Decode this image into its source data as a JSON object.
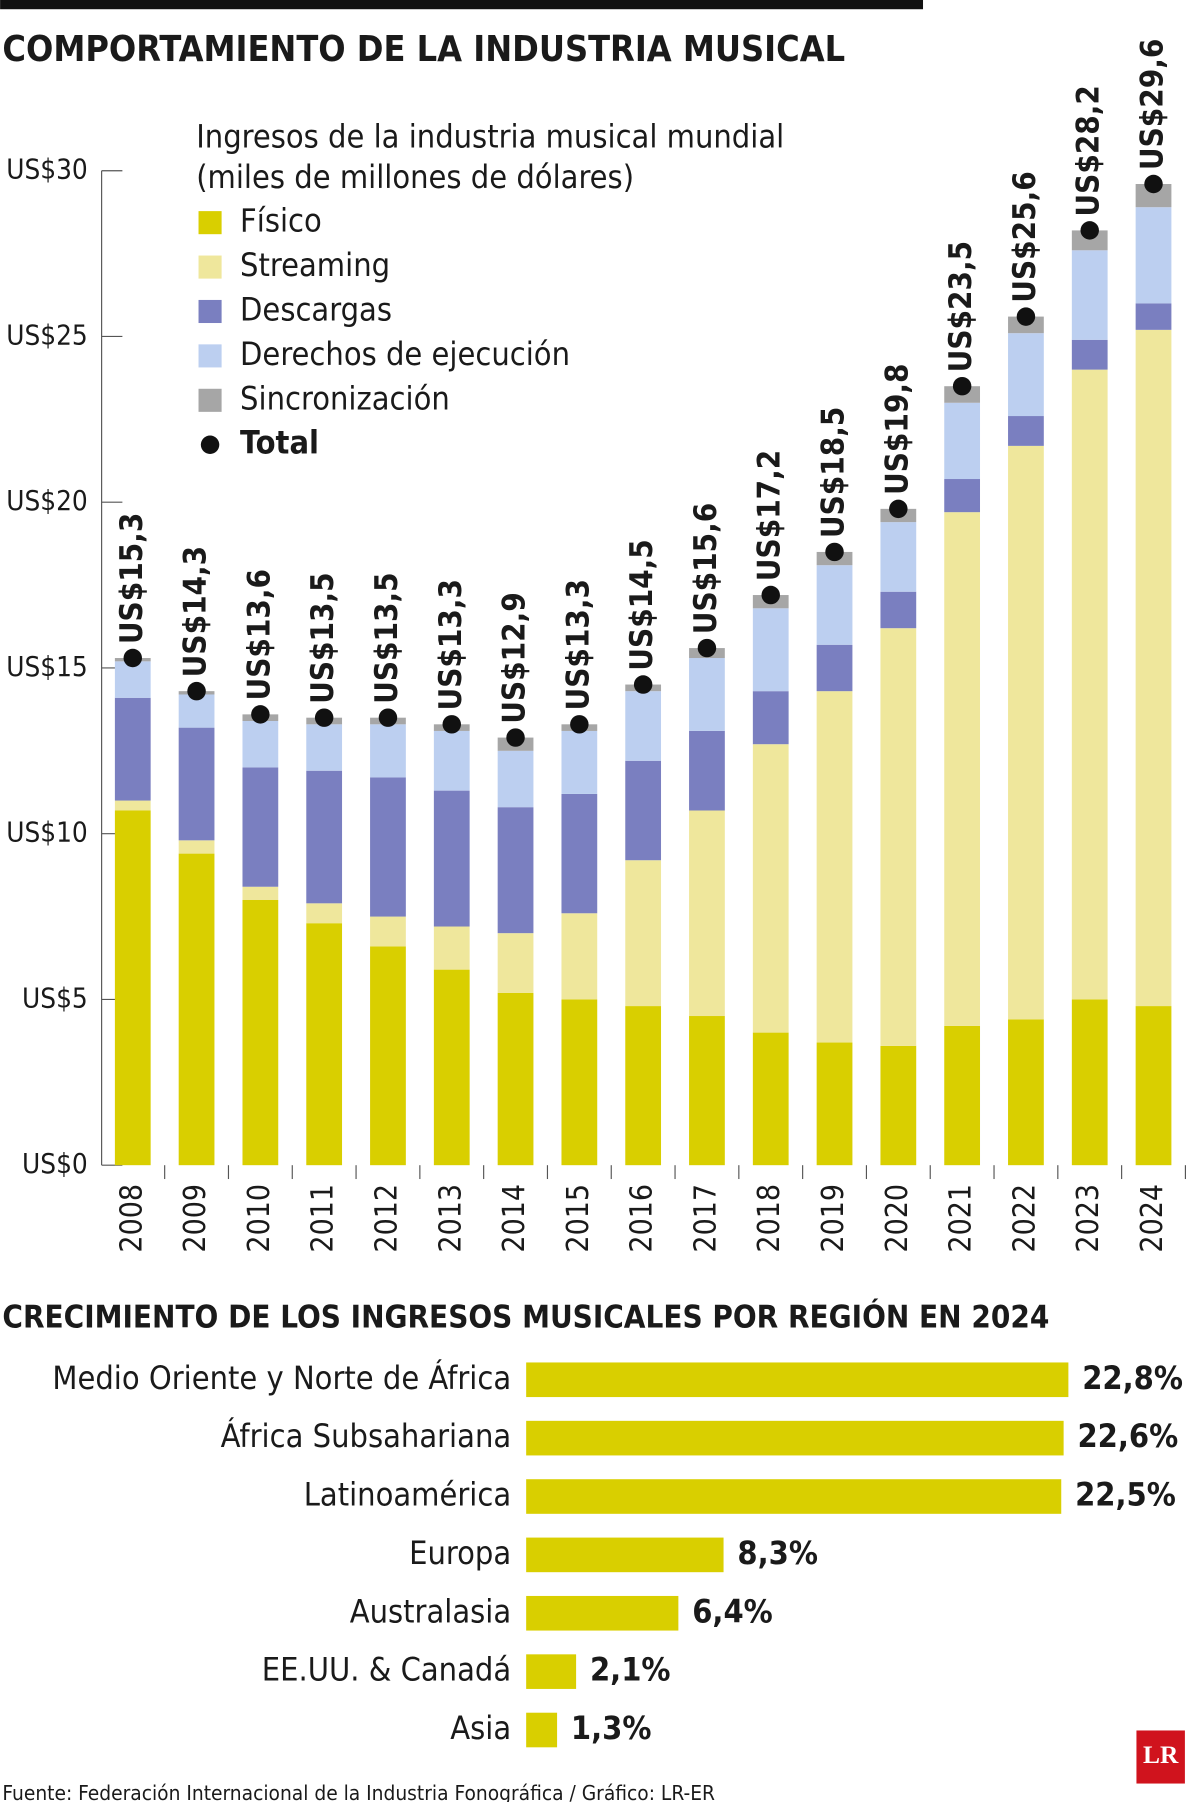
{
  "chart_data": [
    {
      "type": "bar",
      "stacked": true,
      "title": "COMPORTAMIENTO DE LA INDUSTRIA MUSICAL",
      "subtitle": [
        "Ingresos de la industria musical mundial",
        "(miles de millones de dólares)"
      ],
      "categories": [
        "2008",
        "2009",
        "2010",
        "2011",
        "2012",
        "2013",
        "2014",
        "2015",
        "2016",
        "2017",
        "2018",
        "2019",
        "2020",
        "2021",
        "2022",
        "2023",
        "2024"
      ],
      "series": [
        {
          "name": "Físico",
          "color": "#d9cf00",
          "values": [
            10.7,
            9.4,
            8.0,
            7.3,
            6.6,
            5.9,
            5.2,
            5.0,
            4.8,
            4.5,
            4.0,
            3.7,
            3.6,
            4.2,
            4.4,
            5.0,
            4.8
          ]
        },
        {
          "name": "Streaming",
          "color": "#efe79c",
          "values": [
            0.3,
            0.4,
            0.4,
            0.6,
            0.9,
            1.3,
            1.8,
            2.6,
            4.4,
            6.2,
            8.7,
            10.6,
            12.6,
            15.5,
            17.3,
            19.0,
            20.4
          ]
        },
        {
          "name": "Descargas",
          "color": "#7a7fc0",
          "values": [
            3.1,
            3.4,
            3.6,
            4.0,
            4.2,
            4.1,
            3.8,
            3.6,
            3.0,
            2.4,
            1.6,
            1.4,
            1.1,
            1.0,
            0.9,
            0.9,
            0.8
          ]
        },
        {
          "name": "Derechos de ejecución",
          "color": "#bccff0",
          "values": [
            1.1,
            1.0,
            1.4,
            1.4,
            1.6,
            1.8,
            1.7,
            1.9,
            2.1,
            2.2,
            2.5,
            2.4,
            2.1,
            2.3,
            2.5,
            2.7,
            2.9
          ]
        },
        {
          "name": "Sincronización",
          "color": "#a6a6a6",
          "values": [
            0.1,
            0.1,
            0.2,
            0.2,
            0.2,
            0.2,
            0.4,
            0.2,
            0.2,
            0.3,
            0.4,
            0.4,
            0.4,
            0.5,
            0.5,
            0.6,
            0.7
          ]
        },
        {
          "name": "Total",
          "color": "#111111",
          "marker": "dot",
          "values": [
            15.3,
            14.3,
            13.6,
            13.5,
            13.5,
            13.3,
            12.9,
            13.3,
            14.5,
            15.6,
            17.2,
            18.5,
            19.8,
            23.5,
            25.6,
            28.2,
            29.6
          ],
          "value_labels": [
            "US$15,3",
            "US$14,3",
            "US$13,6",
            "US$13,5",
            "US$13,5",
            "US$13,3",
            "US$12,9",
            "US$13,3",
            "US$14,5",
            "US$15,6",
            "US$17,2",
            "US$18,5",
            "US$19,8",
            "US$23,5",
            "US$25,6",
            "US$28,2",
            "US$29,6"
          ]
        }
      ],
      "ylim": [
        0,
        30
      ],
      "yticks": [
        {
          "value": 0,
          "label": "US$0"
        },
        {
          "value": 5,
          "label": "US$5"
        },
        {
          "value": 10,
          "label": "US$10"
        },
        {
          "value": 15,
          "label": "US$15"
        },
        {
          "value": 20,
          "label": "US$20"
        },
        {
          "value": 25,
          "label": "US$25"
        },
        {
          "value": 30,
          "label": "US$30"
        }
      ]
    },
    {
      "type": "hbar",
      "title": "CRECIMIENTO DE LOS INGRESOS MUSICALES POR REGIÓN EN 2024",
      "categories": [
        "Medio Oriente y Norte de África",
        "África Subsahariana",
        "Latinoamérica",
        "Europa",
        "Australasia",
        "EE.UU. & Canadá",
        "Asia"
      ],
      "values": [
        22.8,
        22.6,
        22.5,
        8.3,
        6.4,
        2.1,
        1.3
      ],
      "value_labels": [
        "22,8%",
        "22,6%",
        "22,5%",
        "8,3%",
        "6,4%",
        "2,1%",
        "1,3%"
      ],
      "color": "#d9cf00"
    }
  ],
  "source": "Fuente: Federación Internacional de la Industria Fonográfica / Gráfico: LR-ER",
  "logo": "LR"
}
